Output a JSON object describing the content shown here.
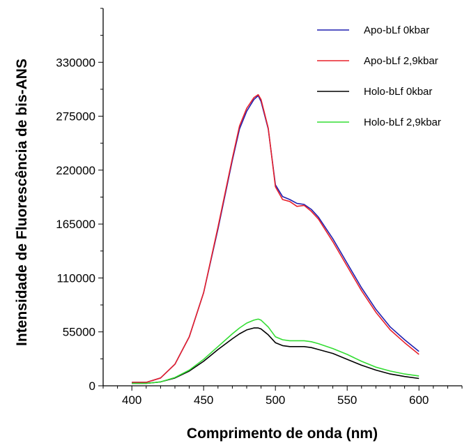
{
  "chart_data": {
    "type": "line",
    "title": "",
    "xlabel": "Comprimento de onda (nm)",
    "ylabel": "Intensidade de Fluorescência de bis-ANS",
    "xlim": [
      380,
      630
    ],
    "ylim": [
      0,
      385000
    ],
    "x_ticks": [
      400,
      450,
      500,
      550,
      600
    ],
    "x_tick_labels": [
      "400",
      "450",
      "500",
      "550",
      "600"
    ],
    "y_ticks": [
      0,
      55000,
      110000,
      165000,
      220000,
      275000,
      330000
    ],
    "y_tick_labels": [
      "0",
      "55000",
      "110000",
      "165000",
      "220000",
      "275000",
      "330000"
    ],
    "grid": false,
    "legend_position": "top-right",
    "x": [
      400,
      410,
      420,
      430,
      440,
      450,
      460,
      470,
      475,
      480,
      485,
      488,
      490,
      495,
      500,
      505,
      510,
      515,
      520,
      525,
      530,
      540,
      550,
      560,
      570,
      580,
      590,
      600
    ],
    "series": [
      {
        "name": "Apo-bLf 0kbar",
        "color": "#1f1fb0",
        "values": [
          3500,
          3500,
          8000,
          22000,
          50000,
          95000,
          160000,
          230000,
          262000,
          280000,
          292000,
          296000,
          290000,
          262000,
          205000,
          193000,
          190000,
          186000,
          185000,
          180000,
          172000,
          150000,
          125000,
          100000,
          78000,
          60000,
          47000,
          35000
        ]
      },
      {
        "name": "Apo-bLf 2,9kbar",
        "color": "#e8202a",
        "values": [
          3500,
          3500,
          8000,
          22000,
          50000,
          95000,
          162000,
          232000,
          265000,
          283000,
          294000,
          297000,
          292000,
          263000,
          203000,
          190000,
          188000,
          183000,
          184000,
          178000,
          170000,
          147000,
          122000,
          97000,
          75000,
          57000,
          44000,
          32000
        ]
      },
      {
        "name": "Holo-bLf 0kbar",
        "color": "#000000",
        "values": [
          2500,
          2500,
          4000,
          8000,
          15000,
          25000,
          37000,
          48000,
          53000,
          57000,
          59000,
          59000,
          58000,
          52000,
          44000,
          41000,
          40000,
          40000,
          40000,
          39000,
          37000,
          33000,
          27000,
          21000,
          16000,
          12000,
          9500,
          7500
        ]
      },
      {
        "name": "Holo-bLf 2,9kbar",
        "color": "#33dd33",
        "values": [
          2500,
          2500,
          4000,
          8500,
          16000,
          27000,
          40000,
          53000,
          59000,
          64000,
          67000,
          68000,
          67000,
          60000,
          50000,
          47000,
          46000,
          46000,
          46000,
          45000,
          43000,
          38000,
          32000,
          25000,
          19000,
          15000,
          12000,
          10000
        ]
      }
    ]
  }
}
